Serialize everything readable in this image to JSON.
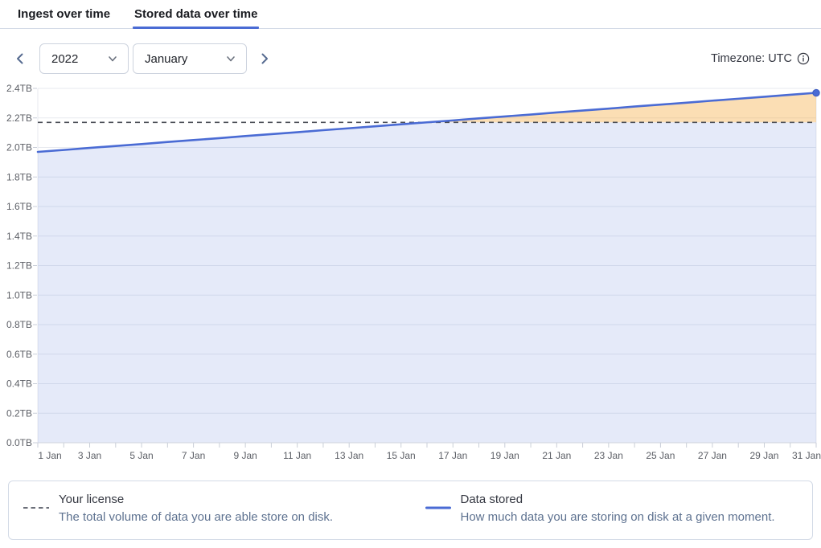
{
  "tabs": [
    {
      "label": "Ingest over time",
      "active": false
    },
    {
      "label": "Stored data over time",
      "active": true
    }
  ],
  "controls": {
    "prev_button": "Previous period",
    "year": "2022",
    "month": "January",
    "next_button": "Next period",
    "timezone_label": "Timezone: UTC",
    "info_icon": "info-icon"
  },
  "chart_data": {
    "type": "area",
    "title": "Stored data over time",
    "xlabel": "",
    "ylabel": "",
    "unit": "TB",
    "x_days": [
      1,
      2,
      3,
      4,
      5,
      6,
      7,
      8,
      9,
      10,
      11,
      12,
      13,
      14,
      15,
      16,
      17,
      18,
      19,
      20,
      21,
      22,
      23,
      24,
      25,
      26,
      27,
      28,
      29,
      30,
      31
    ],
    "series": [
      {
        "name": "Data stored",
        "values": [
          1.97,
          1.983,
          1.997,
          2.01,
          2.023,
          2.037,
          2.05,
          2.063,
          2.077,
          2.09,
          2.103,
          2.117,
          2.13,
          2.143,
          2.157,
          2.17,
          2.183,
          2.197,
          2.21,
          2.223,
          2.237,
          2.25,
          2.263,
          2.277,
          2.29,
          2.303,
          2.317,
          2.33,
          2.343,
          2.357,
          2.37
        ]
      }
    ],
    "reference_line": {
      "name": "Your license",
      "value": 2.17,
      "style": "dashed"
    },
    "ylim": [
      0,
      2.4
    ],
    "y_tick_step": 0.2,
    "grid": true,
    "legend_position": "bottom",
    "y_tick_labels": [
      "0.0TB",
      "0.2TB",
      "0.4TB",
      "0.6TB",
      "0.8TB",
      "1.0TB",
      "1.2TB",
      "1.4TB",
      "1.6TB",
      "1.8TB",
      "2.0TB",
      "2.2TB",
      "2.4TB"
    ],
    "x_tick_labels": [
      "1 Jan",
      "3 Jan",
      "5 Jan",
      "7 Jan",
      "9 Jan",
      "11 Jan",
      "13 Jan",
      "15 Jan",
      "17 Jan",
      "19 Jan",
      "21 Jan",
      "23 Jan",
      "25 Jan",
      "27 Jan",
      "29 Jan",
      "31 Jan"
    ]
  },
  "legend": {
    "items": [
      {
        "swatch": "dashed-gray-line",
        "title": "Your license",
        "description": "The total volume of data you are able store on disk."
      },
      {
        "swatch": "solid-blue-line",
        "title": "Data stored",
        "description": "How much data you are storing on disk at a given moment."
      }
    ]
  },
  "colors": {
    "accent": "#4a6bd4",
    "tab_underline": "#4a6bd4",
    "stored_area_fill": "rgba(74,107,212,0.14)",
    "over_license_fill": "rgba(245,167,59,0.38)",
    "license_line": "#4a4d55",
    "gridline": "#e7eaef",
    "axis_line": "#cfd4dc",
    "tick": "#c9ced8",
    "axis_text": "#5c5f66",
    "chevron": "#566b90",
    "legend_dash_swatch": "#6b6f79",
    "border": "#d3dae6"
  }
}
